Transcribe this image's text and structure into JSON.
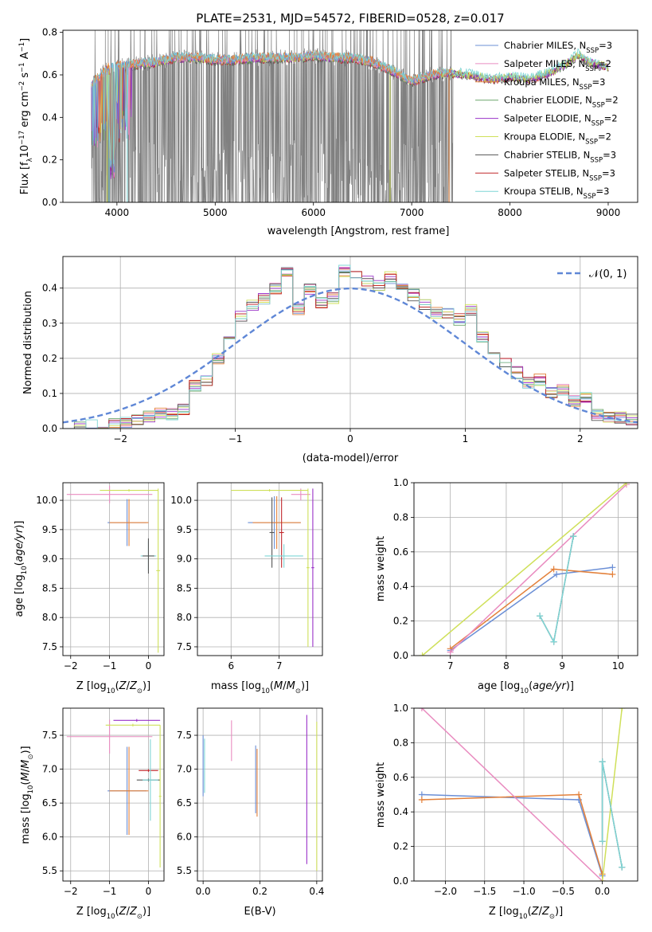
{
  "figure": {
    "title": "PLATE=2531, MJD=54572, FIBERID=0528, z=0.017"
  },
  "colors": {
    "Chabrier MILES": "#6b8fd6",
    "Salpeter MILES": "#e98cc0",
    "Kroupa MILES": "#e3803a",
    "Chabrier ELODIE": "#6aa56a",
    "Salpeter ELODIE": "#9a32c8",
    "Kroupa ELODIE": "#cfe05a",
    "Chabrier STELIB": "#555555",
    "Salpeter STELIB": "#c0282c",
    "Kroupa STELIB": "#7fd6d6",
    "data": "#808080",
    "normal": "#5f87d6"
  },
  "chart_data": [
    {
      "type": "line",
      "xlabel": "wavelength [Angstrom, rest frame]",
      "ylabel": "Flux [f_λ 10^-17 erg cm^-2 s^-1 A^-1]",
      "xlim": [
        3450,
        9300
      ],
      "ylim": [
        0,
        0.81
      ],
      "xticks": [
        4000,
        5000,
        6000,
        7000,
        8000,
        9000
      ],
      "yticks": [
        0.0,
        0.2,
        0.4,
        0.6,
        0.8
      ],
      "data_range": [
        3740,
        7420
      ],
      "legend_position": "top-right",
      "legend": [
        "Chabrier MILES, N_SSP=3",
        "Salpeter MILES, N_SSP=2",
        "Kroupa MILES, N_SSP=3",
        "Chabrier ELODIE, N_SSP=2",
        "Salpeter ELODIE, N_SSP=2",
        "Kroupa ELODIE, N_SSP=2",
        "Chabrier STELIB, N_SSP=3",
        "Salpeter STELIB, N_SSP=3",
        "Kroupa STELIB, N_SSP=3"
      ],
      "continuum": [
        [
          3740,
          0.55
        ],
        [
          3900,
          0.63
        ],
        [
          4000,
          0.64
        ],
        [
          4200,
          0.65
        ],
        [
          4400,
          0.66
        ],
        [
          4600,
          0.68
        ],
        [
          4800,
          0.68
        ],
        [
          5000,
          0.67
        ],
        [
          5200,
          0.67
        ],
        [
          5400,
          0.68
        ],
        [
          5600,
          0.68
        ],
        [
          5800,
          0.68
        ],
        [
          6000,
          0.69
        ],
        [
          6200,
          0.68
        ],
        [
          6400,
          0.68
        ],
        [
          6600,
          0.66
        ],
        [
          6800,
          0.62
        ],
        [
          7000,
          0.57
        ],
        [
          7200,
          0.6
        ],
        [
          7400,
          0.61
        ],
        [
          7600,
          0.6
        ],
        [
          7800,
          0.58
        ],
        [
          8000,
          0.59
        ],
        [
          8200,
          0.58
        ],
        [
          8400,
          0.61
        ],
        [
          8600,
          0.66
        ],
        [
          8700,
          0.7
        ],
        [
          8800,
          0.66
        ],
        [
          9000,
          0.64
        ]
      ]
    },
    {
      "type": "step",
      "xlabel": "(data-model)/error",
      "ylabel": "Normed distribution",
      "xlim": [
        -2.5,
        2.5
      ],
      "ylim": [
        0,
        0.49
      ],
      "xticks": [
        -2,
        -1,
        0,
        1,
        2
      ],
      "yticks": [
        0.0,
        0.1,
        0.2,
        0.3,
        0.4
      ],
      "legend": [
        "N(0,1)"
      ],
      "legend_position": "top-right",
      "bin_edges": [
        -2.5,
        -2.4,
        -2.3,
        -2.2,
        -2.1,
        -2.0,
        -1.9,
        -1.8,
        -1.7,
        -1.6,
        -1.5,
        -1.4,
        -1.3,
        -1.2,
        -1.1,
        -1.0,
        -0.9,
        -0.8,
        -0.7,
        -0.6,
        -0.5,
        -0.4,
        -0.3,
        -0.2,
        -0.1,
        0.0,
        0.1,
        0.2,
        0.3,
        0.4,
        0.5,
        0.6,
        0.7,
        0.8,
        0.9,
        1.0,
        1.1,
        1.2,
        1.3,
        1.4,
        1.5,
        1.6,
        1.7,
        1.8,
        1.9,
        2.0,
        2.1,
        2.2,
        2.3,
        2.4,
        2.5
      ],
      "hist_values": [
        0.005,
        0.005,
        0.008,
        0.01,
        0.013,
        0.017,
        0.022,
        0.035,
        0.045,
        0.04,
        0.055,
        0.12,
        0.135,
        0.2,
        0.265,
        0.32,
        0.35,
        0.37,
        0.4,
        0.45,
        0.34,
        0.4,
        0.36,
        0.37,
        0.45,
        0.44,
        0.42,
        0.41,
        0.43,
        0.4,
        0.38,
        0.35,
        0.33,
        0.33,
        0.31,
        0.34,
        0.26,
        0.22,
        0.19,
        0.16,
        0.13,
        0.14,
        0.1,
        0.11,
        0.08,
        0.09,
        0.04,
        0.035,
        0.03,
        0.025
      ],
      "normal_curve": {
        "mean": 0,
        "sigma": 1
      }
    },
    {
      "type": "errorbar",
      "xlabel": "Z [log10(Z/Z⊙)]",
      "ylabel": "age [log10(age/yr)]",
      "xlim": [
        -2.2,
        0.4
      ],
      "ylim": [
        7.35,
        10.3
      ],
      "xticks": [
        -2,
        -1,
        0
      ],
      "yticks": [
        7.5,
        8.0,
        8.5,
        9.0,
        9.5,
        10.0
      ],
      "points": [
        {
          "model": "Chabrier MILES",
          "x": -0.55,
          "xerr": 0.5,
          "y": 9.62,
          "yerr": 0.4
        },
        {
          "model": "Kroupa MILES",
          "x": -0.5,
          "xerr": 0.5,
          "y": 9.62,
          "yerr": 0.4
        },
        {
          "model": "Salpeter MILES",
          "x": -1.0,
          "xerr": 1.1,
          "y": 10.1,
          "yerr": 0.15
        },
        {
          "model": "Kroupa STELIB",
          "x": 0.0,
          "xerr": 0.2,
          "y": 9.05,
          "yerr": 0.25
        },
        {
          "model": "Chabrier STELIB",
          "x": 0.0,
          "xerr": 0.15,
          "y": 9.05,
          "yerr": 0.3
        },
        {
          "model": "Kroupa ELODIE",
          "x": 0.25,
          "xerr": 0.05,
          "y": 8.8,
          "yerr": 1.4
        },
        {
          "model": "Kroupa ELODIE",
          "x": -0.5,
          "xerr": 0.75,
          "y": 10.17,
          "yerr": 0.02
        }
      ]
    },
    {
      "type": "errorbar",
      "xlabel": "mass [log10(M/M⊙)]",
      "ylabel": "",
      "xlim": [
        5.3,
        7.9
      ],
      "ylim": [
        7.35,
        10.3
      ],
      "xticks": [
        6,
        7
      ],
      "yticks": [
        7.5,
        8.0,
        8.5,
        9.0,
        9.5,
        10.0
      ],
      "points": [
        {
          "model": "Chabrier MILES",
          "x": 6.9,
          "xerr": 0.55,
          "y": 9.62,
          "yerr": 0.45
        },
        {
          "model": "Kroupa MILES",
          "x": 6.95,
          "xerr": 0.5,
          "y": 9.62,
          "yerr": 0.45
        },
        {
          "model": "Chabrier STELIB",
          "x": 6.85,
          "xerr": 0.05,
          "y": 9.45,
          "yerr": 0.6
        },
        {
          "model": "Salpeter STELIB",
          "x": 7.05,
          "xerr": 0.05,
          "y": 9.45,
          "yerr": 0.6
        },
        {
          "model": "Kroupa STELIB",
          "x": 7.1,
          "xerr": 0.4,
          "y": 9.05,
          "yerr": 0.2
        },
        {
          "model": "Salpeter MILES",
          "x": 7.45,
          "xerr": 0.2,
          "y": 10.1,
          "yerr": 0.1
        },
        {
          "model": "Salpeter ELODIE",
          "x": 7.7,
          "xerr": 0.03,
          "y": 8.85,
          "yerr": 1.35
        },
        {
          "model": "Kroupa ELODIE",
          "x": 7.6,
          "xerr": 0.03,
          "y": 8.85,
          "yerr": 1.35
        },
        {
          "model": "Kroupa ELODIE",
          "x": 6.8,
          "xerr": 0.8,
          "y": 10.17,
          "yerr": 0.02
        }
      ]
    },
    {
      "type": "line",
      "xlabel": "age [log10(age/yr)]",
      "ylabel": "mass weight",
      "xlim": [
        6.35,
        10.35
      ],
      "ylim": [
        0,
        1.0
      ],
      "xticks": [
        7,
        8,
        9,
        10
      ],
      "yticks": [
        0.0,
        0.2,
        0.4,
        0.6,
        0.8,
        1.0
      ],
      "series": [
        {
          "model": "Chabrier MILES",
          "x": [
            7.0,
            8.9,
            9.9
          ],
          "y": [
            0.03,
            0.47,
            0.51
          ]
        },
        {
          "model": "Kroupa MILES",
          "x": [
            7.0,
            8.85,
            9.9
          ],
          "y": [
            0.04,
            0.5,
            0.47
          ]
        },
        {
          "model": "Salpeter MILES",
          "x": [
            7.0,
            10.15
          ],
          "y": [
            0.02,
            0.99
          ]
        },
        {
          "model": "Kroupa ELODIE",
          "x": [
            6.5,
            10.15
          ],
          "y": [
            0.0,
            1.0
          ]
        },
        {
          "model": "Chabrier STELIB",
          "x": [
            8.6,
            8.85,
            9.2
          ],
          "y": [
            0.23,
            0.08,
            0.69
          ]
        },
        {
          "model": "Kroupa STELIB",
          "x": [
            8.6,
            8.85,
            9.2
          ],
          "y": [
            0.23,
            0.08,
            0.69
          ]
        }
      ]
    },
    {
      "type": "errorbar",
      "xlabel": "Z [log10(Z/Z⊙)]",
      "ylabel": "mass [log10(M/M⊙)]",
      "xlim": [
        -2.2,
        0.4
      ],
      "ylim": [
        5.35,
        7.9
      ],
      "xticks": [
        -2,
        -1,
        0
      ],
      "yticks": [
        5.5,
        6.0,
        6.5,
        7.0,
        7.5
      ],
      "points": [
        {
          "model": "Chabrier MILES",
          "x": -0.55,
          "xerr": 0.5,
          "y": 6.68,
          "yerr": 0.65
        },
        {
          "model": "Kroupa MILES",
          "x": -0.5,
          "xerr": 0.5,
          "y": 6.68,
          "yerr": 0.65
        },
        {
          "model": "Salpeter MILES",
          "x": -1.0,
          "xerr": 1.1,
          "y": 7.48,
          "yerr": 0.25
        },
        {
          "model": "Salpeter ELODIE",
          "x": -0.3,
          "xerr": 0.6,
          "y": 7.72,
          "yerr": 0.02
        },
        {
          "model": "Kroupa ELODIE",
          "x": -0.4,
          "xerr": 0.7,
          "y": 7.65,
          "yerr": 0.02
        },
        {
          "model": "Salpeter STELIB",
          "x": 0.0,
          "xerr": 0.25,
          "y": 6.98,
          "yerr": 0.02
        },
        {
          "model": "Chabrier STELIB",
          "x": 0.0,
          "xerr": 0.3,
          "y": 6.84,
          "yerr": 0.02
        },
        {
          "model": "Kroupa STELIB",
          "x": 0.05,
          "xerr": 0.2,
          "y": 6.84,
          "yerr": 0.6
        },
        {
          "model": "Kroupa ELODIE",
          "x": 0.3,
          "xerr": 0.03,
          "y": 6.6,
          "yerr": 1.05
        }
      ]
    },
    {
      "type": "errorbar",
      "xlabel": "E(B-V)",
      "ylabel": "",
      "xlim": [
        -0.02,
        0.42
      ],
      "ylim": [
        5.35,
        7.9
      ],
      "xticks": [
        0.0,
        0.2,
        0.4
      ],
      "yticks": [
        5.5,
        6.0,
        6.5,
        7.0,
        7.5
      ],
      "points": [
        {
          "model": "Chabrier MILES",
          "x": 0.0,
          "y": 7.05,
          "yerr": 0.45
        },
        {
          "model": "Kroupa STELIB",
          "x": 0.005,
          "y": 7.05,
          "yerr": 0.4
        },
        {
          "model": "Salpeter MILES",
          "x": 0.1,
          "y": 7.42,
          "yerr": 0.3
        },
        {
          "model": "Chabrier MILES",
          "x": 0.185,
          "y": 6.85,
          "yerr": 0.5
        },
        {
          "model": "Kroupa MILES",
          "x": 0.19,
          "y": 6.8,
          "yerr": 0.5
        },
        {
          "model": "Salpeter ELODIE",
          "x": 0.365,
          "y": 6.7,
          "yerr": 1.1
        },
        {
          "model": "Kroupa ELODIE",
          "x": 0.4,
          "y": 6.6,
          "yerr": 1.1
        }
      ]
    },
    {
      "type": "line",
      "xlabel": "Z [log10(Z/Z⊙)]",
      "ylabel": "mass weight",
      "xlim": [
        -2.4,
        0.45
      ],
      "ylim": [
        0,
        1.0
      ],
      "xticks": [
        -2.0,
        -1.5,
        -1.0,
        -0.5,
        0.0
      ],
      "yticks": [
        0.0,
        0.2,
        0.4,
        0.6,
        0.8,
        1.0
      ],
      "series": [
        {
          "model": "Chabrier MILES",
          "x": [
            -2.3,
            -0.3,
            0.0
          ],
          "y": [
            0.5,
            0.47,
            0.03
          ]
        },
        {
          "model": "Kroupa MILES",
          "x": [
            -2.3,
            -0.3,
            0.0
          ],
          "y": [
            0.47,
            0.5,
            0.04
          ]
        },
        {
          "model": "Salpeter MILES",
          "x": [
            -2.3,
            0.0
          ],
          "y": [
            1.0,
            0.0
          ]
        },
        {
          "model": "Kroupa ELODIE",
          "x": [
            0.0,
            0.25
          ],
          "y": [
            0.0,
            1.0
          ]
        },
        {
          "model": "Chabrier STELIB",
          "x": [
            0.0,
            0.0,
            0.25
          ],
          "y": [
            0.23,
            0.69,
            0.08
          ]
        },
        {
          "model": "Kroupa STELIB",
          "x": [
            0.0,
            0.0,
            0.25
          ],
          "y": [
            0.23,
            0.69,
            0.08
          ]
        }
      ]
    }
  ]
}
